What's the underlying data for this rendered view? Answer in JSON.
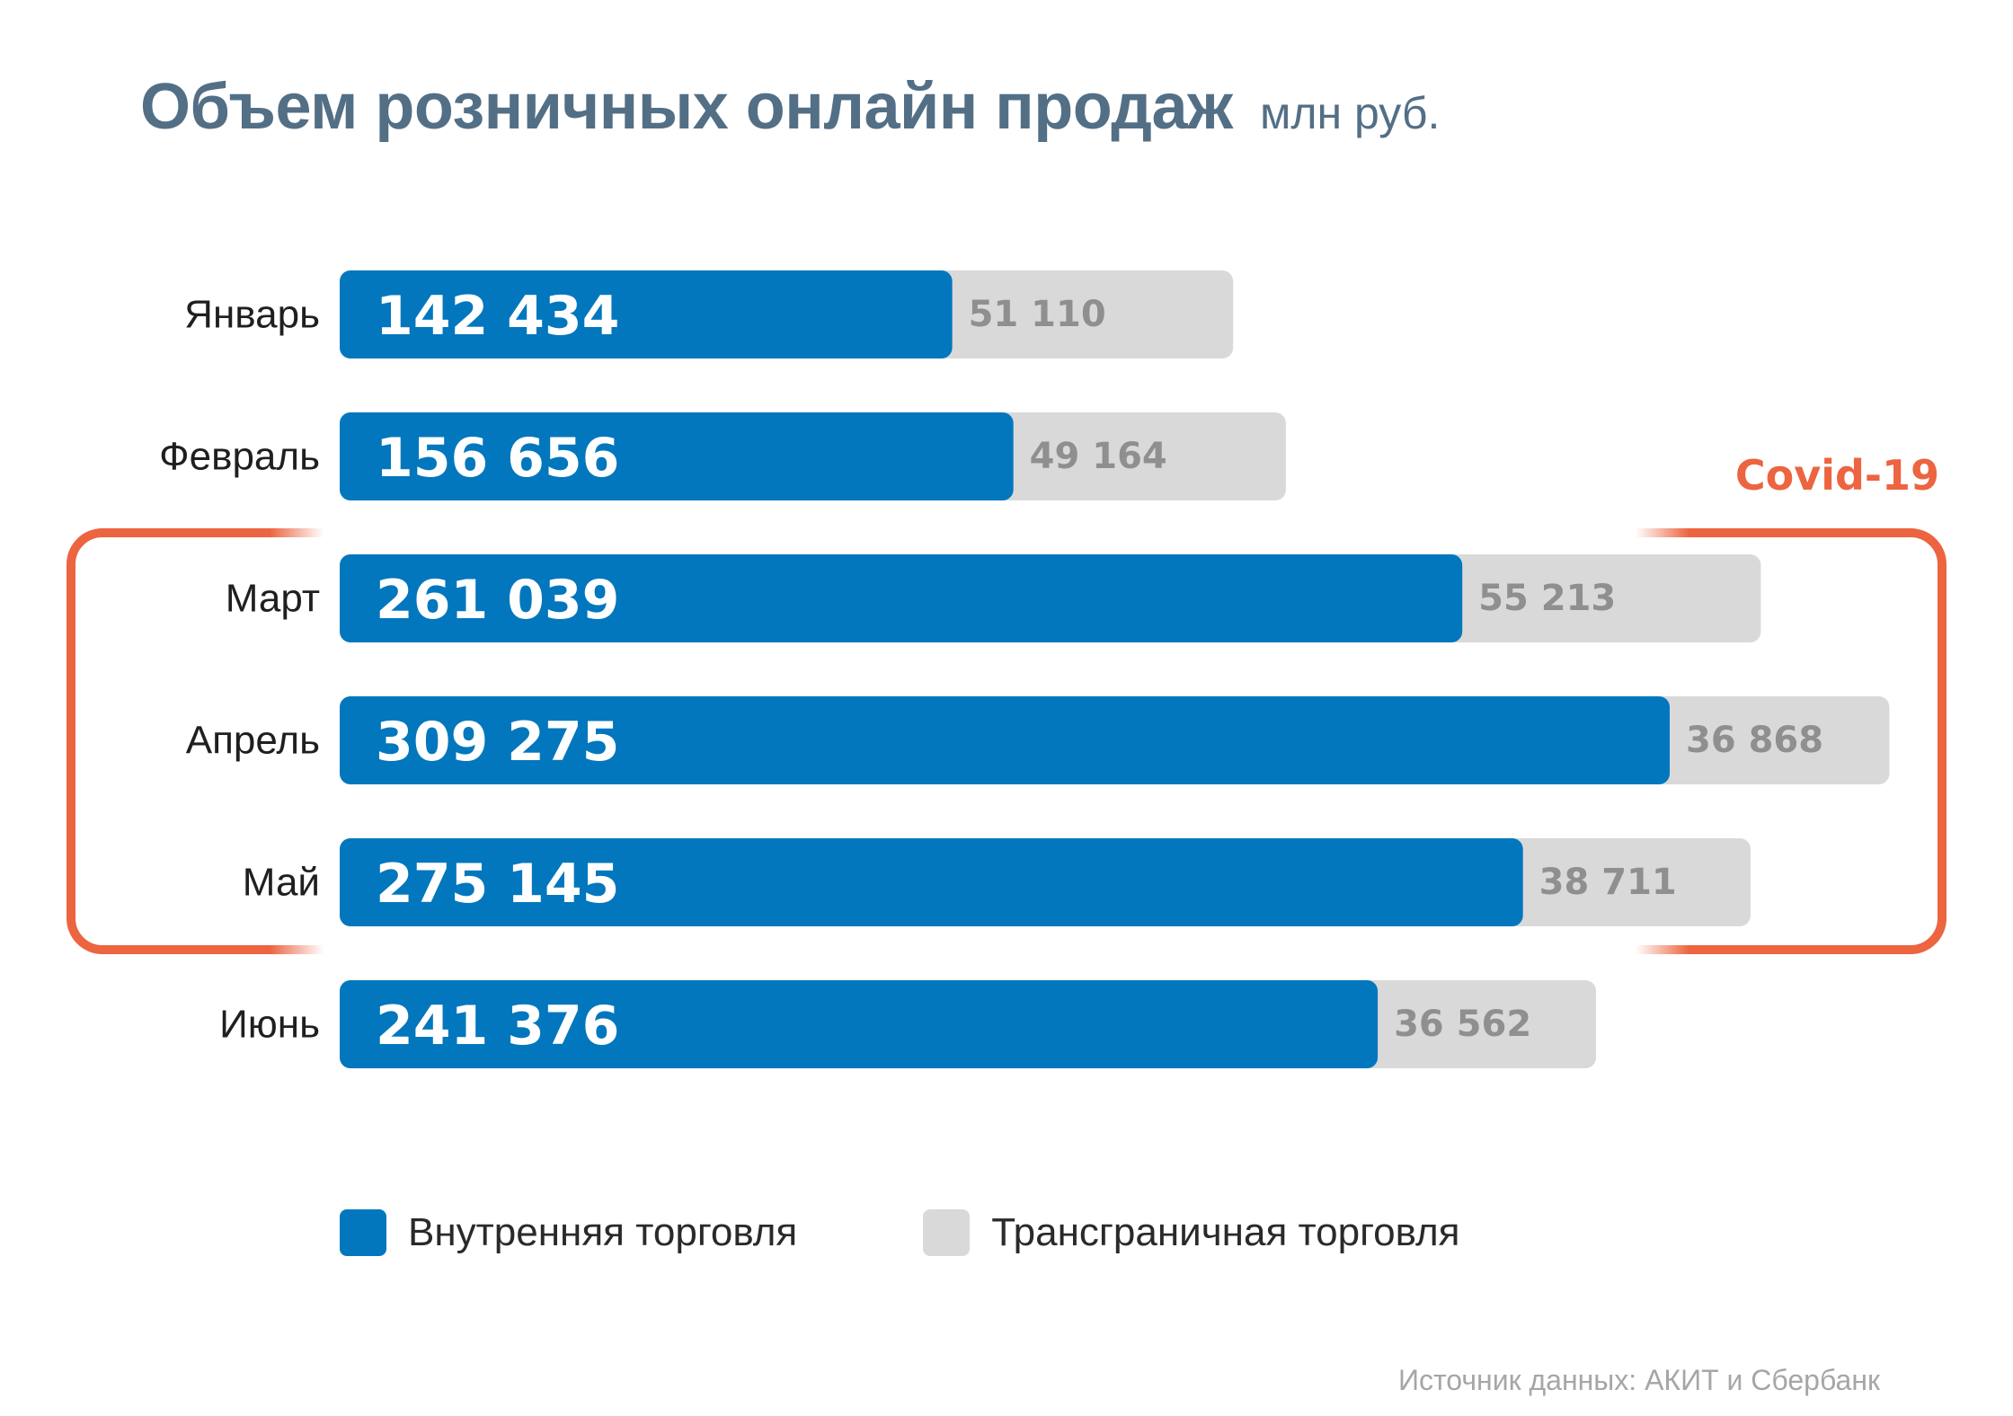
{
  "title": "Объем розничных онлайн продаж",
  "unit": "млн руб.",
  "covid_label": "Covid-19",
  "legend": [
    {
      "label": "Внутренняя торговля",
      "color": "#0277bd"
    },
    {
      "label": "Трансграничная торговля",
      "color": "#d9d9d9"
    }
  ],
  "source": "Источник данных: АКИТ и Сбербанк",
  "chart_data": {
    "type": "bar",
    "orientation": "horizontal",
    "stacked": true,
    "categories": [
      "Январь",
      "Февраль",
      "Март",
      "Апрель",
      "Май",
      "Июнь"
    ],
    "series": [
      {
        "name": "Внутренняя торговля",
        "values": [
          142434,
          156656,
          261039,
          309275,
          275145,
          241376
        ],
        "labels": [
          "142 434",
          "156 656",
          "261 039",
          "309 275",
          "275 145",
          "241 376"
        ],
        "color": "#0277bd"
      },
      {
        "name": "Трансграничная торговля",
        "values": [
          51110,
          49164,
          55213,
          36868,
          38711,
          36562
        ],
        "labels": [
          "51 110",
          "49 164",
          "55 213",
          "36 868",
          "38 711",
          "36 562"
        ],
        "color": "#d9d9d9"
      }
    ],
    "highlight": {
      "label": "Covid-19",
      "categories": [
        "Март",
        "Апрель",
        "Май"
      ]
    }
  }
}
